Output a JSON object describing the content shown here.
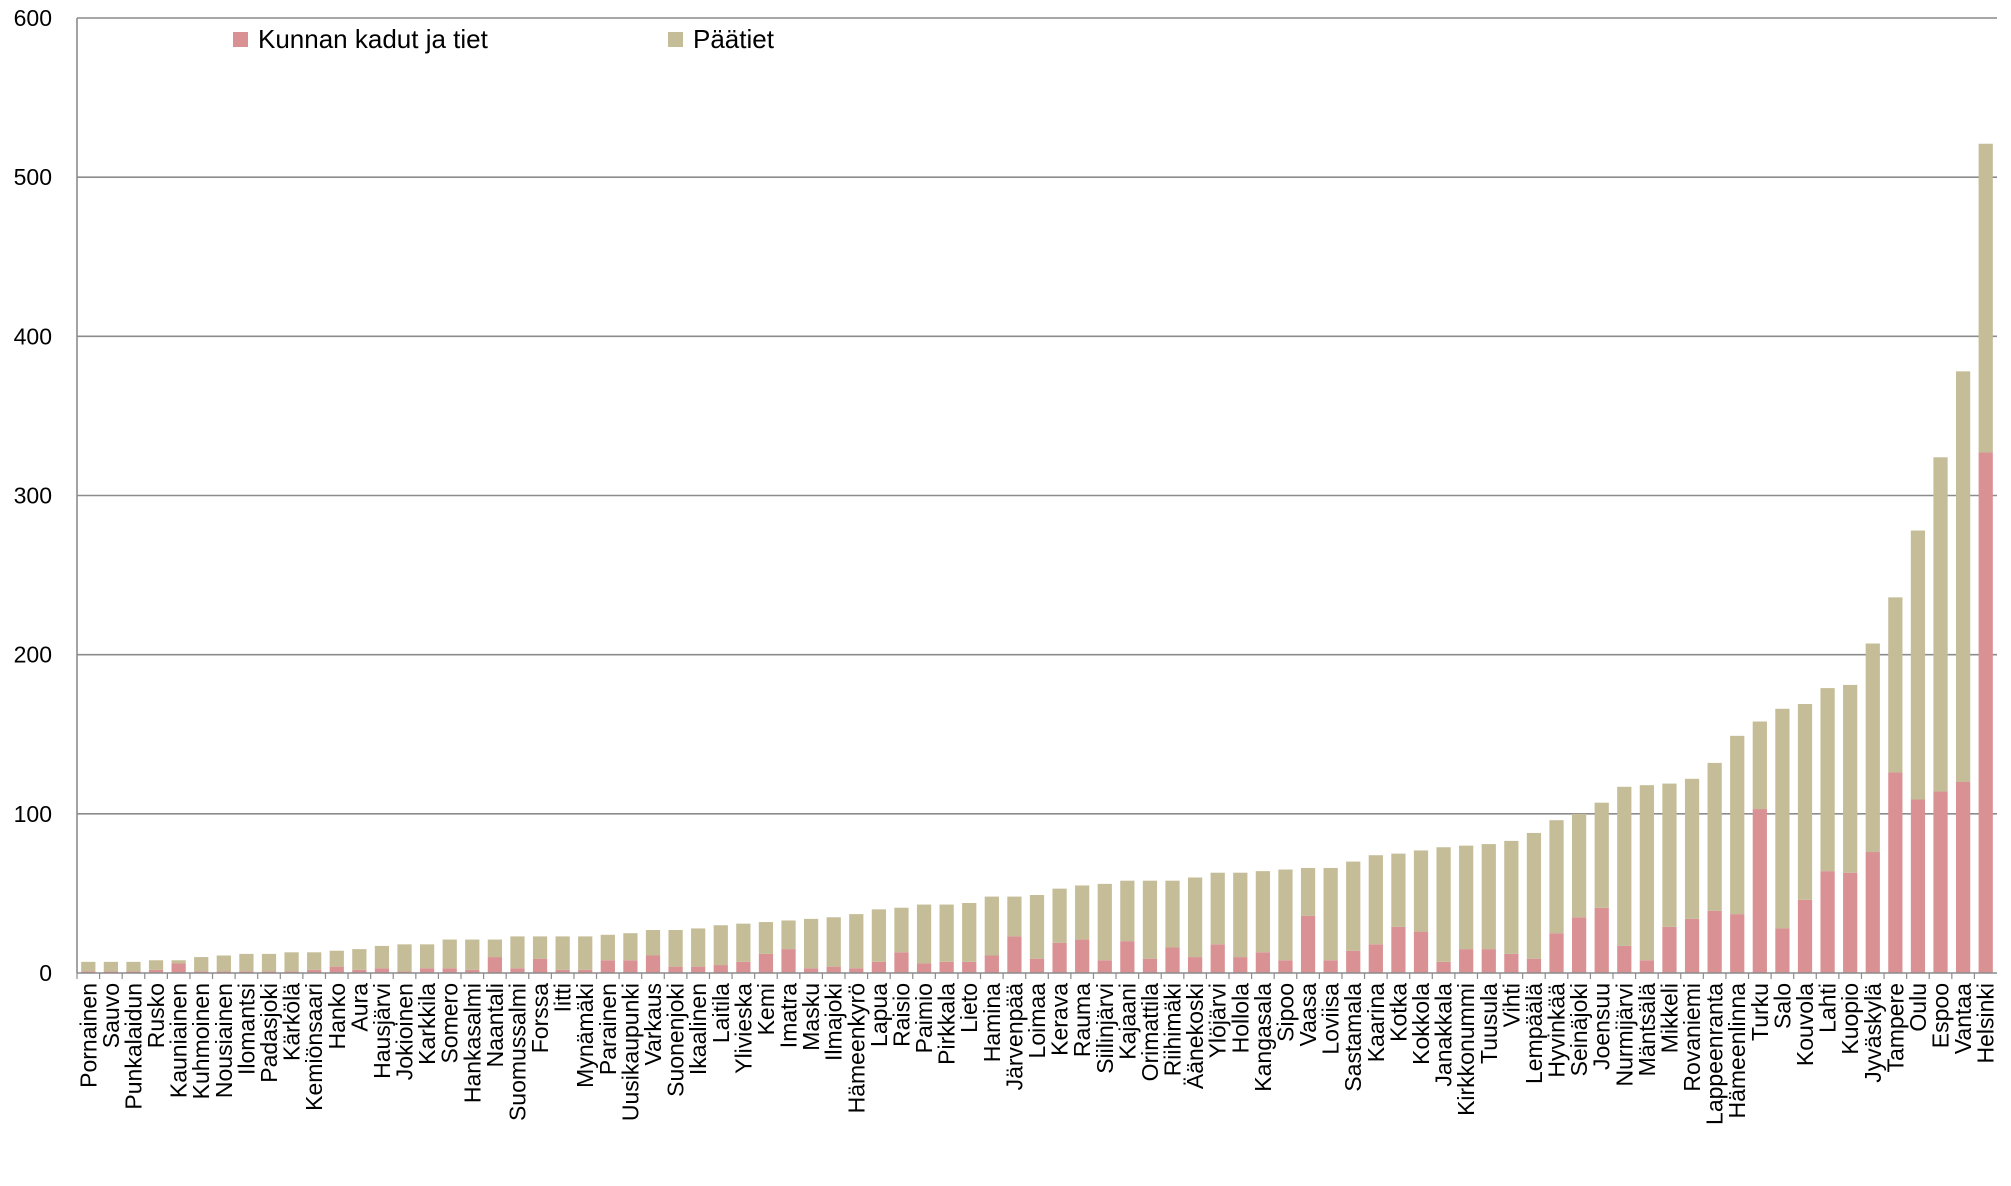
{
  "chart_data": {
    "type": "bar",
    "stacked": true,
    "title": "",
    "xlabel": "",
    "ylabel": "",
    "ylim": [
      0,
      600
    ],
    "yticks": [
      0,
      100,
      200,
      300,
      400,
      500,
      600
    ],
    "grid": true,
    "legend_position": "top-left",
    "categories": [
      "Pornainen",
      "Sauvo",
      "Punkalaidun",
      "Rusko",
      "Kauniainen",
      "Kuhmoinen",
      "Nousiainen",
      "Ilomantsi",
      "Padasjoki",
      "Kärkölä",
      "Kemiönsaari",
      "Hanko",
      "Aura",
      "Hausjärvi",
      "Jokioinen",
      "Karkkila",
      "Somero",
      "Hankasalmi",
      "Naantali",
      "Suomussalmi",
      "Forssa",
      "Iitti",
      "Mynämäki",
      "Parainen",
      "Uusikaupunki",
      "Varkaus",
      "Suonenjoki",
      "Ikaalinen",
      "Laitila",
      "Ylivieska",
      "Kemi",
      "Imatra",
      "Masku",
      "Ilmajoki",
      "Hämeenkyrö",
      "Lapua",
      "Raisio",
      "Paimio",
      "Pirkkala",
      "Lieto",
      "Hamina",
      "Järvenpää",
      "Loimaa",
      "Kerava",
      "Rauma",
      "Siilinjärvi",
      "Kajaani",
      "Orimattila",
      "Riihimäki",
      "Äänekoski",
      "Ylöjärvi",
      "Hollola",
      "Kangasala",
      "Sipoo",
      "Vaasa",
      "Loviisa",
      "Sastamala",
      "Kaarina",
      "Kotka",
      "Kokkola",
      "Janakkala",
      "Kirkkonummi",
      "Tuusula",
      "Vihti",
      "Lempäälä",
      "Hyvinkää",
      "Seinäjoki",
      "Joensuu",
      "Nurmijärvi",
      "Mäntsälä",
      "Mikkeli",
      "Rovaniemi",
      "Lappeenranta",
      "Hämeenlinna",
      "Turku",
      "Salo",
      "Kouvola",
      "Lahti",
      "Kuopio",
      "Jyväskylä",
      "Tampere",
      "Oulu",
      "Espoo",
      "Vantaa",
      "Helsinki"
    ],
    "series": [
      {
        "name": "Kunnan kadut ja tiet",
        "color": "#d99194",
        "values": [
          1,
          1,
          1,
          2,
          6,
          1,
          1,
          1,
          1,
          1,
          2,
          4,
          2,
          3,
          1,
          3,
          3,
          2,
          10,
          3,
          9,
          2,
          2,
          8,
          8,
          11,
          4,
          4,
          5,
          7,
          12,
          15,
          3,
          4,
          3,
          7,
          13,
          6,
          7,
          7,
          11,
          23,
          9,
          19,
          21,
          8,
          20,
          9,
          16,
          10,
          18,
          10,
          13,
          8,
          36,
          8,
          14,
          18,
          29,
          26,
          7,
          15,
          15,
          12,
          9,
          25,
          35,
          41,
          17,
          8,
          29,
          34,
          39,
          37,
          103,
          28,
          46,
          64,
          63,
          76,
          126,
          109,
          114,
          120,
          327
        ]
      },
      {
        "name": "Päätiet",
        "color": "#c4bd97",
        "values": [
          6,
          6,
          6,
          6,
          2,
          9,
          10,
          11,
          11,
          12,
          11,
          10,
          13,
          14,
          17,
          15,
          18,
          19,
          11,
          20,
          14,
          21,
          21,
          16,
          17,
          16,
          23,
          24,
          25,
          24,
          20,
          18,
          31,
          31,
          34,
          33,
          28,
          37,
          36,
          37,
          37,
          25,
          40,
          34,
          34,
          48,
          38,
          49,
          42,
          50,
          45,
          53,
          51,
          57,
          30,
          58,
          56,
          56,
          46,
          51,
          72,
          65,
          66,
          71,
          79,
          71,
          65,
          66,
          100,
          110,
          90,
          88,
          93,
          112,
          55,
          138,
          123,
          115,
          118,
          131,
          110,
          169,
          210,
          258,
          194
        ]
      }
    ]
  }
}
